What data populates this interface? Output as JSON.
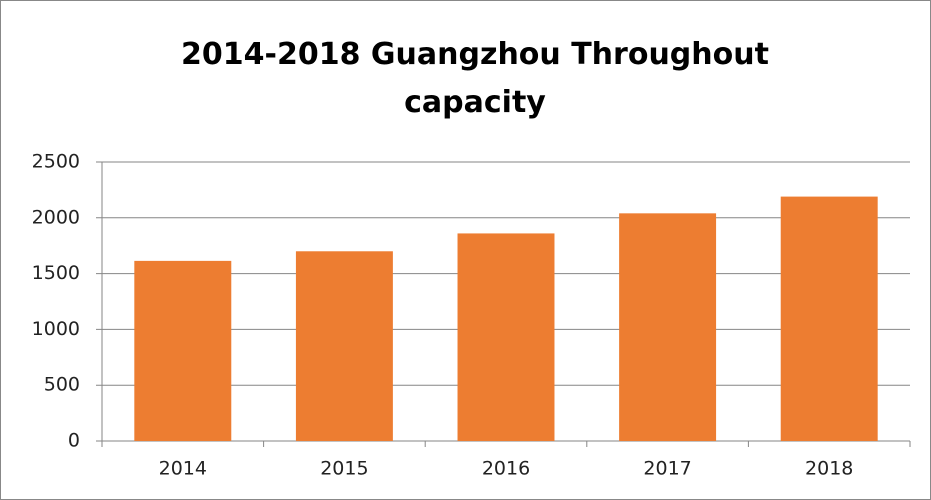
{
  "chart_data": {
    "type": "bar",
    "title": "2014-2018 Guangzhou Throughout capacity",
    "categories": [
      "2014",
      "2015",
      "2016",
      "2017",
      "2018"
    ],
    "values": [
      1614,
      1700,
      1860,
      2040,
      2190
    ],
    "color": "#ed7d31",
    "ylim": [
      0,
      2500
    ],
    "yticks": [
      0,
      500,
      1000,
      1500,
      2000,
      2500
    ],
    "grid": true
  }
}
